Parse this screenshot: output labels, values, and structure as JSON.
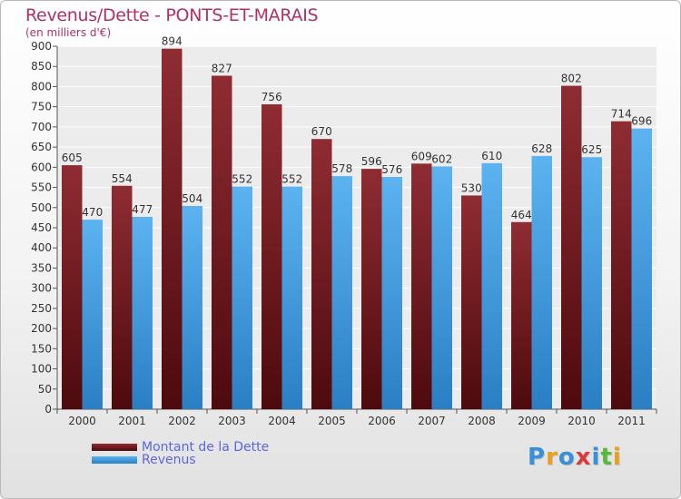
{
  "chart_data": {
    "type": "bar",
    "title": "Revenus/Dette - PONTS-ET-MARAIS",
    "subtitle": "(en milliers d'€)",
    "categories": [
      "2000",
      "2001",
      "2002",
      "2003",
      "2004",
      "2005",
      "2006",
      "2007",
      "2008",
      "2009",
      "2010",
      "2011"
    ],
    "series": [
      {
        "name": "Montant de la Dette",
        "color": "#7a1a1f",
        "values": [
          605,
          554,
          894,
          827,
          756,
          670,
          596,
          609,
          530,
          464,
          802,
          714
        ]
      },
      {
        "name": "Revenus",
        "color": "#4aa3e6",
        "values": [
          470,
          477,
          504,
          552,
          552,
          578,
          576,
          602,
          610,
          628,
          625,
          696
        ]
      }
    ],
    "ylim": [
      0,
      900
    ],
    "ytick_step": 50,
    "grid": true,
    "legend": "bottom-left"
  },
  "brand": {
    "logo_letters": [
      "P",
      "r",
      "o",
      "x",
      "i",
      "t",
      "i"
    ],
    "logo_colors": [
      "#3a8fd9",
      "#e8a020",
      "#3a8fd9",
      "#d93a3a",
      "#3a8fd9",
      "#58b83a",
      "#e8a020"
    ]
  }
}
